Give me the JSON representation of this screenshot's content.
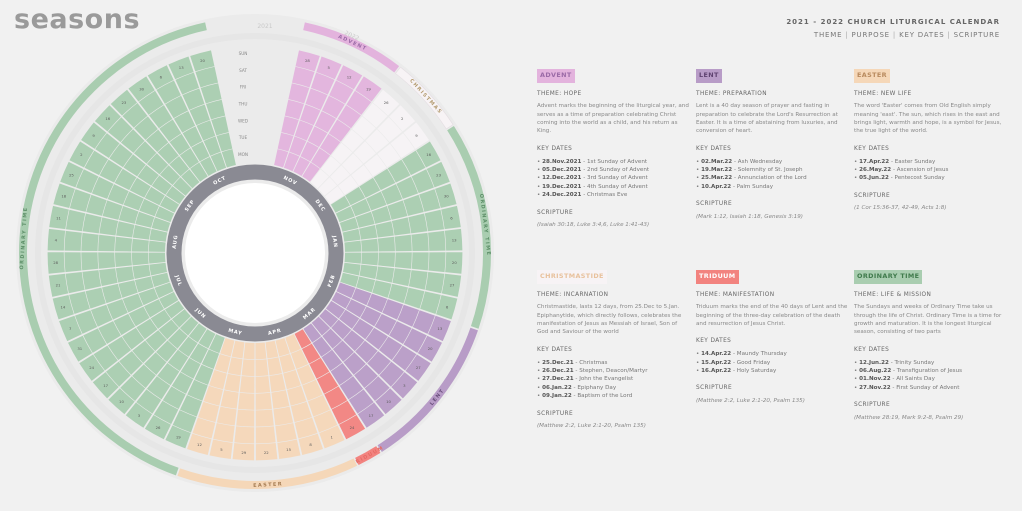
{
  "app": {
    "logo": "seasons",
    "title": "2021 - 2022 CHURCH LITURGICAL CALENDAR",
    "nav": [
      "THEME",
      "PURPOSE",
      "KEY DATES",
      "SCRIPTURE"
    ]
  },
  "colors": {
    "advent": "#e3b3dd",
    "christmas": "#f7f3f5",
    "lent": "#b89cc7",
    "triduum": "#f2837f",
    "easter": "#f5d7b8",
    "ordinary": "#a9cdb0"
  },
  "chart_data": {
    "type": "radial-calendar",
    "year_labels": [
      "2021",
      "2022"
    ],
    "weekdays": [
      "SUN",
      "SAT",
      "FRI",
      "THU",
      "WED",
      "TUE",
      "MON"
    ],
    "months": [
      "NOV",
      "DEC",
      "JAN",
      "FEB",
      "MAR",
      "APR",
      "MAY",
      "JUN",
      "JUL",
      "AUG",
      "SEP",
      "OCT"
    ],
    "seasons": [
      {
        "name": "ADVENT",
        "weeks": 4,
        "color_key": "advent",
        "label_color": "#9a6aa6"
      },
      {
        "name": "CHRISTMAS",
        "weeks": 3,
        "color_key": "christmas",
        "label_color": "#b39b6f"
      },
      {
        "name": "ORDINARY TIME",
        "weeks": 8,
        "color_key": "ordinary",
        "label_color": "#5d8f68"
      },
      {
        "name": "LENT",
        "weeks": 6,
        "color_key": "lent",
        "label_color": "#6a4f7c"
      },
      {
        "name": "TRIDUUM",
        "weeks": 1,
        "color_key": "triduum",
        "label_color": "#e66b66"
      },
      {
        "name": "EASTER",
        "weeks": 7,
        "color_key": "easter",
        "label_color": "#a67d54"
      },
      {
        "name": "ORDINARY TIME",
        "weeks": 23,
        "color_key": "ordinary",
        "label_color": "#5d8f68"
      }
    ],
    "week_start_days": [
      28,
      5,
      12,
      19,
      26,
      2,
      9,
      16,
      23,
      30,
      6,
      13,
      20,
      27,
      6,
      13,
      20,
      27,
      3,
      10,
      17,
      24,
      1,
      8,
      15,
      22,
      29,
      5,
      12,
      19,
      26,
      3,
      10,
      17,
      24,
      31,
      7,
      14,
      21,
      28,
      4,
      11,
      18,
      25,
      2,
      9,
      16,
      23,
      30,
      6,
      13,
      20
    ]
  },
  "cards": [
    {
      "name": "ADVENT",
      "color_key": "advent",
      "text_color": "#9a6aa6",
      "theme": "THEME: HOPE",
      "description": "Advent marks the beginning of the liturgical year, and serves as a time of preparation celebrating Christ coming into the world as a child, and his return as King.",
      "key_dates_title": "KEY DATES",
      "key_dates": [
        {
          "date": "28.Nov.2021",
          "text": " - 1st Sunday of Advent"
        },
        {
          "date": "05.Dec.2021",
          "text": " - 2nd Sunday of Advent"
        },
        {
          "date": "12.Dec.2021",
          "text": " - 3rd Sunday of Advent"
        },
        {
          "date": "19.Dec.2021",
          "text": " - 4th Sunday of Advent"
        },
        {
          "date": "24.Dec.2021",
          "text": " - Christmas Eve"
        }
      ],
      "scripture_title": "SCRIPTURE",
      "scripture": "(Isaiah 30:18, Luke 3:4,6, Luke 1:41-43)"
    },
    {
      "name": "LENT",
      "color_key": "lent",
      "text_color": "#5f4370",
      "theme": "THEME: PREPARATION",
      "description": "Lent is a 40 day season of prayer and fasting in preparation to celebrate the Lord's Resurrection at Easter. It is a time of abstaining from luxuries, and conversion of heart.",
      "key_dates_title": "KEY DATES",
      "key_dates": [
        {
          "date": "02.Mar.22",
          "text": " - Ash Wednesday"
        },
        {
          "date": "19.Mar.22",
          "text": " - Solemnity of St. Joseph"
        },
        {
          "date": "25.Mar.22",
          "text": " - Annunciation of the Lord"
        },
        {
          "date": "10.Apr.22",
          "text": " - Palm Sunday"
        }
      ],
      "scripture_title": "SCRIPTURE",
      "scripture": "(Mark 1:12, Isaiah 1:18, Genesis 3:19)"
    },
    {
      "name": "EASTER",
      "color_key": "easter",
      "text_color": "#b88a5e",
      "theme": "THEME: NEW LIFE",
      "description": "The word 'Easter' comes from Old English simply meaning 'east'. The sun, which rises in the east and brings light, warmth and hope, is a symbol for Jesus, the true light of the world.",
      "key_dates_title": "KEY DATES",
      "key_dates": [
        {
          "date": "17.Apr.22",
          "text": " - Easter Sunday"
        },
        {
          "date": "26.May.22",
          "text": " - Ascension of Jesus"
        },
        {
          "date": "05.Jun.22",
          "text": " - Pentecost Sunday"
        }
      ],
      "scripture_title": "SCRIPTURE",
      "scripture": "(1 Cor 15:36-37, 42-49, Acts 1:8)"
    },
    {
      "name": "CHRISTMASTIDE",
      "color_key": "christmas",
      "text_color": "#e8c19c",
      "theme": "THEME: INCARNATION",
      "description": "Christmastide, lasts 12 days, from 25.Dec to 5.Jan. Epiphanytide, which directly follows, celebrates the manifestation of Jesus as Messiah of Israel, Son of God and Saviour of the world",
      "key_dates_title": "KEY DATES",
      "key_dates": [
        {
          "date": "25.Dec.21",
          "text": " - Christmas"
        },
        {
          "date": "26.Dec.21",
          "text": " - Stephen, Deacon/Martyr"
        },
        {
          "date": "27.Dec.21",
          "text": " - John the Evangelist"
        },
        {
          "date": "06.Jan.22",
          "text": " - Epiphany Day"
        },
        {
          "date": "09.Jan.22",
          "text": " - Baptism of the Lord"
        }
      ],
      "scripture_title": "SCRIPTURE",
      "scripture": "(Matthew 2:2, Luke 2:1-20, Psalm 135)"
    },
    {
      "name": "TRIDUUM",
      "color_key": "triduum",
      "text_color": "#ffffff",
      "theme": "THEME: MANIFESTATION",
      "description": "Triduum marks the end of the 40 days of Lent and the beginning of the three-day celebration of the death and resurrection of Jesus Christ.",
      "key_dates_title": "KEY DATES",
      "key_dates": [
        {
          "date": "14.Apr.22",
          "text": " - Maundy Thursday"
        },
        {
          "date": "15.Apr.22",
          "text": " - Good Friday"
        },
        {
          "date": "16.Apr.22",
          "text": " - Holy Saturday"
        }
      ],
      "scripture_title": "SCRIPTURE",
      "scripture": "(Matthew 2:2, Luke 2:1-20, Psalm 135)"
    },
    {
      "name": "ORDINARY TIME",
      "color_key": "ordinary",
      "text_color": "#3f7a4b",
      "theme": "THEME: LIFE & MISSION",
      "description": "The Sundays and weeks of Ordinary Time take us through the life of Christ. Ordinary Time is a time for growth and maturation. It is the longest liturgical season, consisting of two parts",
      "key_dates_title": "KEY DATES",
      "key_dates": [
        {
          "date": "12.Jun.22",
          "text": " - Trinity Sunday"
        },
        {
          "date": "06.Aug.22",
          "text": " - Transfiguration of Jesus"
        },
        {
          "date": "01.Nov.22",
          "text": " - All Saints Day"
        },
        {
          "date": "27.Nov.22",
          "text": " - First Sunday of Advent"
        }
      ],
      "scripture_title": "SCRIPTURE",
      "scripture": "(Matthew 28:19, Mark 9:2-8, Psalm 29)"
    }
  ]
}
